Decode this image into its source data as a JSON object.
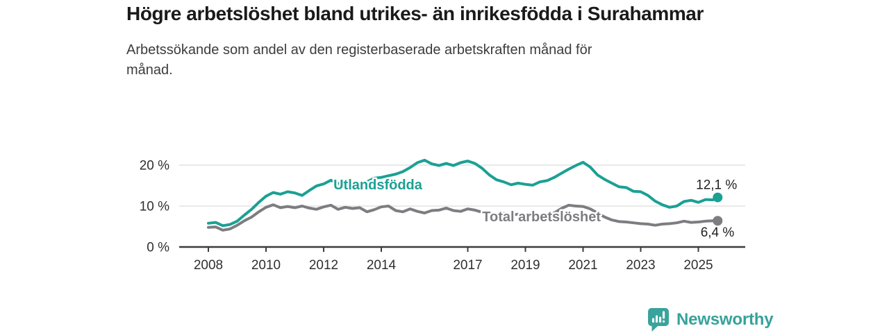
{
  "page": {
    "background_color": "#ffffff"
  },
  "footer": {
    "brand": "Newsworthy",
    "brand_color": "#35a29a",
    "logo_icon": "speech-bubble-bar-chart-icon"
  },
  "chart_data": {
    "type": "line",
    "title": "Högre arbetslöshet bland utrikes- än inrikesfödda i Surahammar",
    "subtitle": "Arbetssökande som andel av den registerbaserade arbetskraften månad för månad.",
    "unit": "%",
    "grid": "horizontal",
    "legend_position": "inline-labels",
    "xlim": [
      2006.9,
      2026.6
    ],
    "ylim": [
      0,
      22.5
    ],
    "x_ticks": [
      {
        "value": 2008,
        "label": "2008"
      },
      {
        "value": 2010,
        "label": "2010"
      },
      {
        "value": 2012,
        "label": "2012"
      },
      {
        "value": 2014,
        "label": "2014"
      },
      {
        "value": 2017,
        "label": "2017"
      },
      {
        "value": 2019,
        "label": "2019"
      },
      {
        "value": 2021,
        "label": "2021"
      },
      {
        "value": 2023,
        "label": "2023"
      },
      {
        "value": 2025,
        "label": "2025"
      }
    ],
    "y_ticks": [
      {
        "value": 0,
        "label": "0 %"
      },
      {
        "value": 10,
        "label": "10 %"
      },
      {
        "value": 20,
        "label": "20 %"
      }
    ],
    "x": [
      2008,
      2008.25,
      2008.5,
      2008.75,
      2009,
      2009.25,
      2009.5,
      2009.75,
      2010,
      2010.25,
      2010.5,
      2010.75,
      2011,
      2011.25,
      2011.5,
      2011.75,
      2012,
      2012.25,
      2012.5,
      2012.75,
      2013,
      2013.25,
      2013.5,
      2013.75,
      2014,
      2014.25,
      2014.5,
      2014.75,
      2015,
      2015.25,
      2015.5,
      2015.75,
      2016,
      2016.25,
      2016.5,
      2016.75,
      2017,
      2017.25,
      2017.5,
      2017.75,
      2018,
      2018.25,
      2018.5,
      2018.75,
      2019,
      2019.25,
      2019.5,
      2019.75,
      2020,
      2020.25,
      2020.5,
      2020.75,
      2021,
      2021.25,
      2021.5,
      2021.75,
      2022,
      2022.25,
      2022.5,
      2022.75,
      2023,
      2023.25,
      2023.5,
      2023.75,
      2024,
      2024.25,
      2024.5,
      2024.75,
      2025,
      2025.25,
      2025.5,
      2025.67
    ],
    "series": [
      {
        "id": "utlandsfodda",
        "name": "Utlandsfödda",
        "color": "#1ba094",
        "end_label": "12,1 %",
        "end_value": 12.1,
        "label_x": 2012.34,
        "label_y": 14.1,
        "end_label_dx": 28,
        "end_label_dy": -12,
        "values": [
          5.8,
          6.0,
          5.2,
          5.5,
          6.3,
          7.8,
          9.2,
          10.9,
          12.4,
          13.3,
          12.9,
          13.5,
          13.2,
          12.6,
          13.8,
          14.9,
          15.4,
          16.3,
          15.5,
          16.0,
          15.4,
          15.8,
          15.9,
          16.8,
          17.0,
          17.4,
          17.8,
          18.4,
          19.4,
          20.6,
          21.2,
          20.3,
          19.9,
          20.4,
          19.9,
          20.6,
          21.0,
          20.4,
          19.2,
          17.6,
          16.4,
          15.9,
          15.2,
          15.6,
          15.3,
          15.1,
          15.9,
          16.2,
          17.0,
          18.0,
          19.0,
          19.9,
          20.7,
          19.5,
          17.6,
          16.5,
          15.6,
          14.7,
          14.5,
          13.6,
          13.5,
          12.6,
          11.2,
          10.3,
          9.7,
          10.0,
          11.1,
          11.4,
          10.9,
          11.6,
          11.5,
          12.1
        ]
      },
      {
        "id": "total",
        "name": "Total arbetslöshet",
        "color": "#7d7d81",
        "end_label": "6,4 %",
        "end_value": 6.4,
        "label_x": 2017.5,
        "label_y": 6.3,
        "end_label_dx": 24,
        "end_label_dy": 23,
        "values": [
          4.8,
          4.9,
          4.1,
          4.4,
          5.3,
          6.4,
          7.3,
          8.6,
          9.7,
          10.3,
          9.6,
          9.9,
          9.6,
          10.0,
          9.5,
          9.2,
          9.8,
          10.2,
          9.2,
          9.7,
          9.4,
          9.6,
          8.6,
          9.1,
          9.8,
          10.0,
          8.9,
          8.6,
          9.3,
          8.7,
          8.3,
          8.9,
          9.0,
          9.5,
          8.9,
          8.7,
          9.3,
          9.0,
          8.5,
          8.2,
          8.0,
          8.2,
          7.8,
          8.0,
          7.5,
          7.4,
          7.7,
          7.9,
          8.3,
          9.4,
          10.2,
          10.0,
          9.9,
          9.3,
          8.3,
          7.3,
          6.6,
          6.2,
          6.1,
          5.9,
          5.7,
          5.6,
          5.3,
          5.6,
          5.7,
          5.9,
          6.3,
          6.0,
          6.1,
          6.3,
          6.4,
          6.4
        ]
      }
    ]
  }
}
